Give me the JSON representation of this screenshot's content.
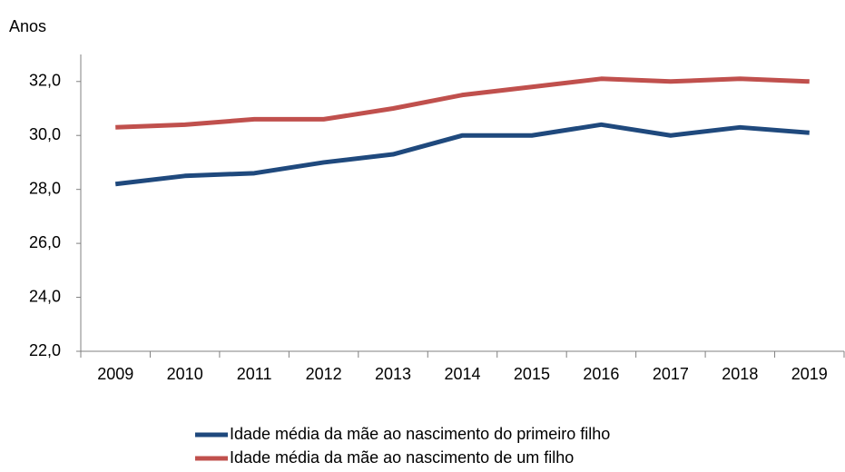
{
  "chart_data": {
    "type": "line",
    "y_label": "Anos",
    "categories": [
      "2009",
      "2010",
      "2011",
      "2012",
      "2013",
      "2014",
      "2015",
      "2016",
      "2017",
      "2018",
      "2019"
    ],
    "series": [
      {
        "name": "Idade média da mãe ao nascimento do primeiro filho",
        "color": "#1f497d",
        "values": [
          28.2,
          28.5,
          28.6,
          29.0,
          29.3,
          30.0,
          30.0,
          30.4,
          30.0,
          30.3,
          30.1
        ]
      },
      {
        "name": "Idade média da mãe ao nascimento de um filho",
        "color": "#c0504d",
        "values": [
          30.3,
          30.4,
          30.6,
          30.6,
          31.0,
          31.5,
          31.8,
          32.1,
          32.0,
          32.1,
          32.0
        ]
      }
    ],
    "ylim": [
      22,
      32.8
    ],
    "yticks": [
      {
        "value": 22,
        "label": "22,0"
      },
      {
        "value": 24,
        "label": "24,0"
      },
      {
        "value": 26,
        "label": "26,0"
      },
      {
        "value": 28,
        "label": "28,0"
      },
      {
        "value": 30,
        "label": "30,0"
      },
      {
        "value": 32,
        "label": "32,0"
      }
    ],
    "legend": "bottom"
  }
}
